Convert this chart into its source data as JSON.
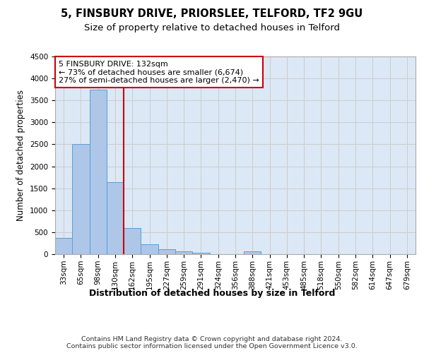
{
  "title_line1": "5, FINSBURY DRIVE, PRIORSLEE, TELFORD, TF2 9GU",
  "title_line2": "Size of property relative to detached houses in Telford",
  "xlabel": "Distribution of detached houses by size in Telford",
  "ylabel": "Number of detached properties",
  "categories": [
    "33sqm",
    "65sqm",
    "98sqm",
    "130sqm",
    "162sqm",
    "195sqm",
    "227sqm",
    "259sqm",
    "291sqm",
    "324sqm",
    "356sqm",
    "388sqm",
    "421sqm",
    "453sqm",
    "485sqm",
    "518sqm",
    "550sqm",
    "582sqm",
    "614sqm",
    "647sqm",
    "679sqm"
  ],
  "values": [
    370,
    2500,
    3750,
    1640,
    590,
    220,
    105,
    60,
    35,
    0,
    0,
    60,
    0,
    0,
    0,
    0,
    0,
    0,
    0,
    0,
    0
  ],
  "bar_color": "#aec6e8",
  "bar_edge_color": "#5a9fd4",
  "vline_color": "#cc0000",
  "annotation_text": "5 FINSBURY DRIVE: 132sqm\n← 73% of detached houses are smaller (6,674)\n27% of semi-detached houses are larger (2,470) →",
  "annotation_box_color": "#ffffff",
  "annotation_box_edge": "#cc0000",
  "annotation_fontsize": 8.0,
  "ylim": [
    0,
    4500
  ],
  "yticks": [
    0,
    500,
    1000,
    1500,
    2000,
    2500,
    3000,
    3500,
    4000,
    4500
  ],
  "grid_color": "#cccccc",
  "bg_color": "#dce8f5",
  "footer": "Contains HM Land Registry data © Crown copyright and database right 2024.\nContains public sector information licensed under the Open Government Licence v3.0.",
  "title_fontsize": 10.5,
  "subtitle_fontsize": 9.5,
  "xlabel_fontsize": 9,
  "ylabel_fontsize": 8.5,
  "tick_fontsize": 7.5,
  "footer_fontsize": 6.8
}
